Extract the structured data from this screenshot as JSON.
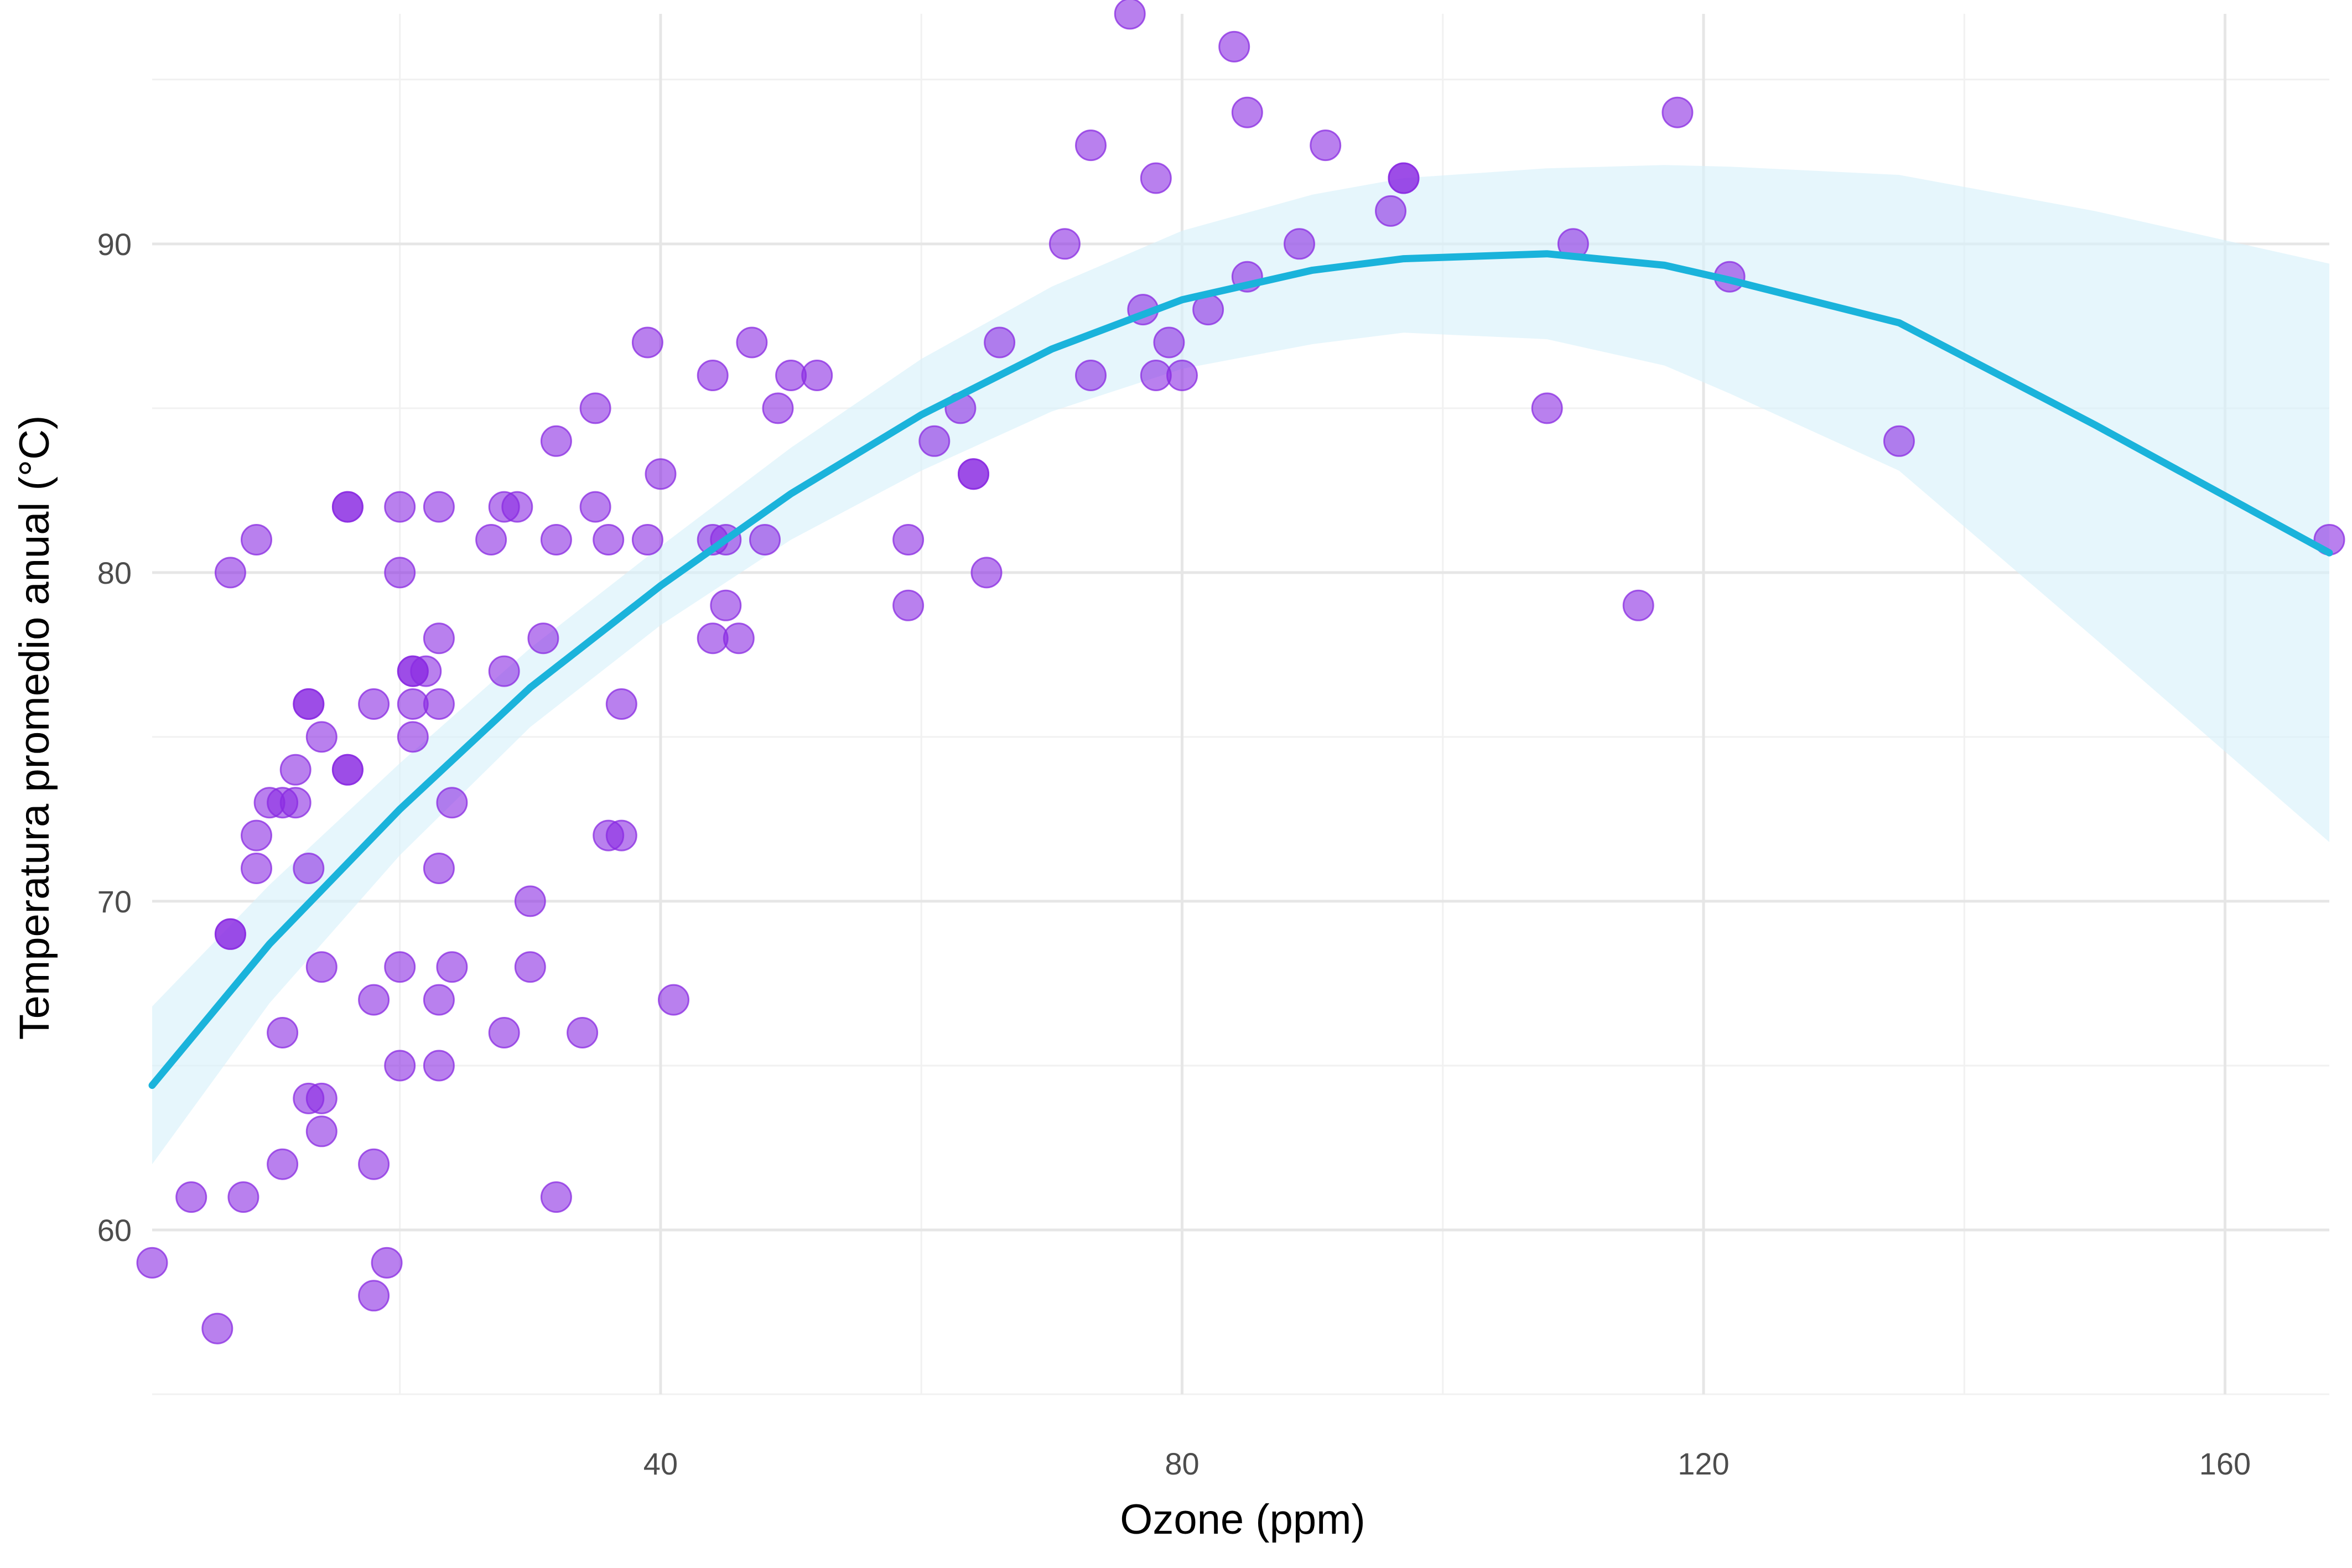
{
  "chart_data": {
    "type": "scatter",
    "title": "",
    "xlabel": "Ozone (ppm)",
    "ylabel": "Temperatura promedio anual (°C)",
    "xlim": [
      1,
      168
    ],
    "ylim": [
      55,
      97
    ],
    "x_ticks": [
      40,
      80,
      120,
      160
    ],
    "x_minor_ticks": [
      20,
      60,
      100,
      140
    ],
    "y_ticks": [
      60,
      70,
      80,
      90
    ],
    "y_minor_ticks": [
      55,
      65,
      75,
      85,
      95
    ],
    "grid": true,
    "legend": "none",
    "point_color": "#8A2BE2",
    "point_opacity": 0.6,
    "line_color": "#1AB3DB",
    "band_color": "#D9F1FA",
    "series": [
      {
        "type": "points",
        "x": [
          41,
          36,
          12,
          18,
          28,
          23,
          19,
          8,
          7,
          16,
          11,
          14,
          18,
          14,
          34,
          6,
          30,
          11,
          1,
          11,
          4,
          32,
          23,
          45,
          115,
          37,
          29,
          71,
          39,
          23,
          21,
          37,
          20,
          12,
          13,
          135,
          49,
          32,
          64,
          40,
          77,
          97,
          97,
          85,
          10,
          27,
          7,
          48,
          35,
          61,
          79,
          63,
          16,
          80,
          108,
          20,
          52,
          82,
          50,
          64,
          59,
          39,
          9,
          16,
          78,
          35,
          66,
          122,
          89,
          110,
          44,
          28,
          65,
          22,
          59,
          23,
          31,
          44,
          21,
          9,
          45,
          168,
          73,
          76,
          118,
          84,
          85,
          96,
          78,
          73,
          91,
          47,
          32,
          20,
          23,
          21,
          24,
          44,
          21,
          28,
          9,
          13,
          46,
          18,
          13,
          24,
          16,
          13,
          23,
          36,
          7,
          14,
          30,
          14,
          18,
          20
        ],
        "y": [
          67,
          72,
          74,
          62,
          66,
          65,
          59,
          61,
          69,
          74,
          66,
          68,
          58,
          64,
          66,
          57,
          68,
          62,
          59,
          73,
          61,
          61,
          67,
          81,
          79,
          76,
          82,
          90,
          87,
          82,
          77,
          72,
          65,
          73,
          76,
          84,
          85,
          81,
          83,
          83,
          88,
          92,
          92,
          89,
          73,
          81,
          80,
          81,
          82,
          84,
          87,
          85,
          74,
          86,
          85,
          82,
          86,
          88,
          86,
          83,
          81,
          81,
          81,
          82,
          86,
          85,
          87,
          89,
          90,
          90,
          86,
          82,
          80,
          77,
          79,
          76,
          78,
          78,
          77,
          72,
          79,
          81,
          86,
          97,
          94,
          96,
          94,
          91,
          92,
          93,
          93,
          87,
          84,
          80,
          78,
          75,
          73,
          81,
          76,
          77,
          71,
          71,
          78,
          67,
          76,
          68,
          82,
          64,
          71,
          81,
          69,
          63,
          70,
          75,
          76,
          68
        ]
      },
      {
        "type": "smooth",
        "x": [
          1,
          10,
          20,
          30,
          40,
          50,
          60,
          70,
          80,
          90,
          97,
          108,
          117,
          122,
          135,
          150,
          168
        ],
        "y": [
          64.4,
          68.7,
          72.8,
          76.5,
          79.6,
          82.4,
          84.8,
          86.8,
          88.3,
          89.2,
          89.55,
          89.7,
          89.35,
          88.9,
          87.6,
          84.5,
          80.6
        ],
        "upper": [
          66.8,
          70.5,
          74.2,
          77.7,
          80.8,
          83.8,
          86.5,
          88.7,
          90.4,
          91.5,
          92.0,
          92.3,
          92.4,
          92.35,
          92.1,
          91.0,
          89.4
        ],
        "lower": [
          62.0,
          66.9,
          71.4,
          75.3,
          78.4,
          81.0,
          83.1,
          84.9,
          86.2,
          86.95,
          87.3,
          87.1,
          86.3,
          85.45,
          83.1,
          78.0,
          71.8
        ]
      }
    ]
  }
}
